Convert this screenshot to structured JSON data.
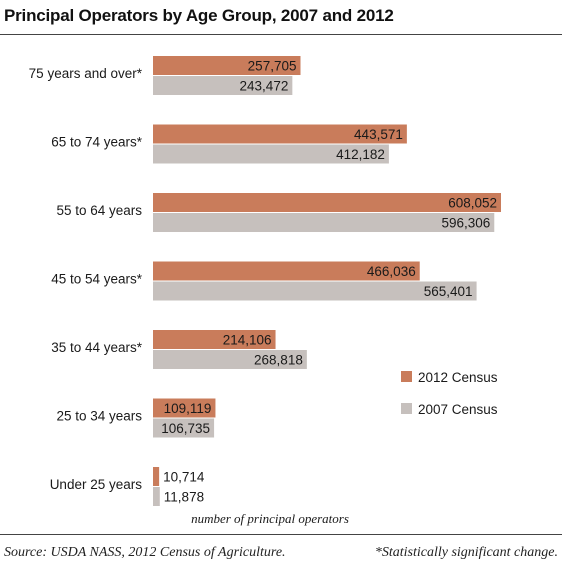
{
  "chart_data": {
    "type": "bar",
    "orientation": "horizontal",
    "title": "Principal Operators by Age Group, 2007 and 2012",
    "xlabel": "number of principal operators",
    "ylabel": "",
    "categories": [
      "75 years and over*",
      "65 to 74 years*",
      "55 to 64 years",
      "45 to 54 years*",
      "35 to 44 years*",
      "25 to 34 years",
      "Under 25 years"
    ],
    "series": [
      {
        "name": "2012 Census",
        "color": "#c97c5b",
        "values": [
          257705,
          443571,
          608052,
          466036,
          214106,
          109119,
          10714
        ],
        "labels": [
          "257,705",
          "443,571",
          "608,052",
          "466,036",
          "214,106",
          "109,119",
          "10,714"
        ]
      },
      {
        "name": "2007 Census",
        "color": "#c6c0bd",
        "values": [
          243472,
          412182,
          596306,
          565401,
          268818,
          106735,
          11878
        ],
        "labels": [
          "243,472",
          "412,182",
          "596,306",
          "565,401",
          "268,818",
          "106,735",
          "11,878"
        ]
      }
    ],
    "xlim": [
      0,
      700000
    ],
    "grid": false,
    "legend_position": "bottom-right"
  },
  "footer": {
    "source": "Source: USDA NASS, 2012 Census of Agriculture.",
    "note": "*Statistically significant change."
  }
}
